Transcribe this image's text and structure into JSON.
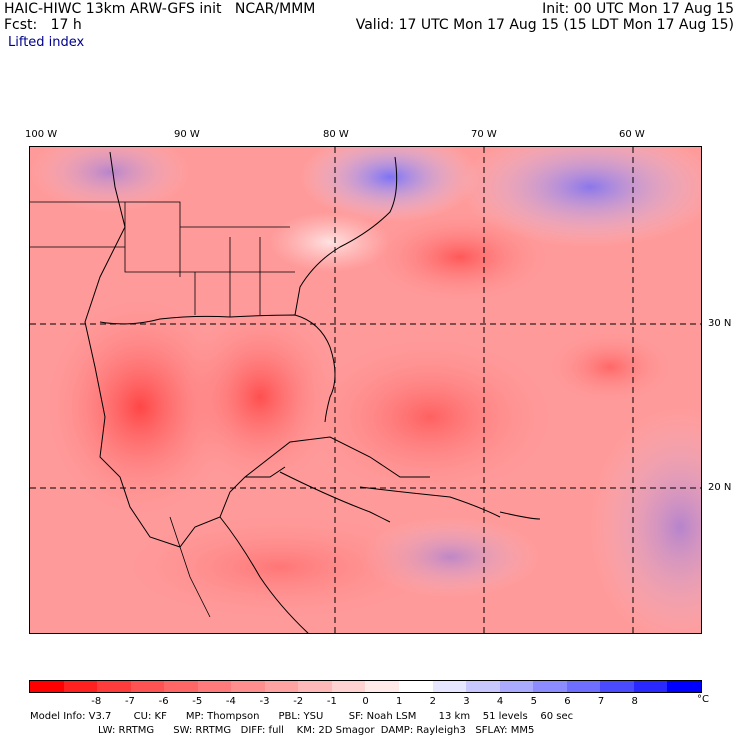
{
  "header": {
    "model_title": "HAIC-HIWC 13km ARW-GFS init   NCAR/MMM",
    "forecast": "Fcst:   17 h",
    "field": "Lifted index",
    "init": "Init: 00 UTC Mon 17 Aug 15",
    "valid": "Valid: 17 UTC Mon 17 Aug 15 (15 LDT Mon 17 Aug 15)"
  },
  "axes": {
    "longitudes": [
      "100 W",
      "90 W",
      "80 W",
      "70 W",
      "60 W"
    ],
    "latitudes": [
      "30 N",
      "20 N"
    ]
  },
  "colorbar": {
    "labels": [
      "-8",
      "-7",
      "-6",
      "-5",
      "-4",
      "-3",
      "-2",
      "-1",
      "0",
      "1",
      "2",
      "3",
      "4",
      "5",
      "6",
      "7",
      "8"
    ],
    "unit": "°C",
    "colors": [
      "#ff0000",
      "#ff2020",
      "#ff3c3c",
      "#ff5252",
      "#ff6666",
      "#ff7a7a",
      "#ff8e8e",
      "#ffa2a2",
      "#ffb8b8",
      "#ffd2d2",
      "#ffeaea",
      "#ffffff",
      "#e6e6ff",
      "#c8c8ff",
      "#aaaaff",
      "#8c8cff",
      "#6e6eff",
      "#4a4aff",
      "#2828ff",
      "#0000ff"
    ]
  },
  "footer": {
    "line1": "Model Info: V3.7       CU: KF      MP: Thompson      PBL: YSU        SF: Noah LSM       13 km    51 levels    60 sec",
    "line2": "LW: RRTMG      SW: RRTMG   DIFF: full    KM: 2D Smagor  DAMP: Rayleigh3   SFLAY: MM5"
  }
}
